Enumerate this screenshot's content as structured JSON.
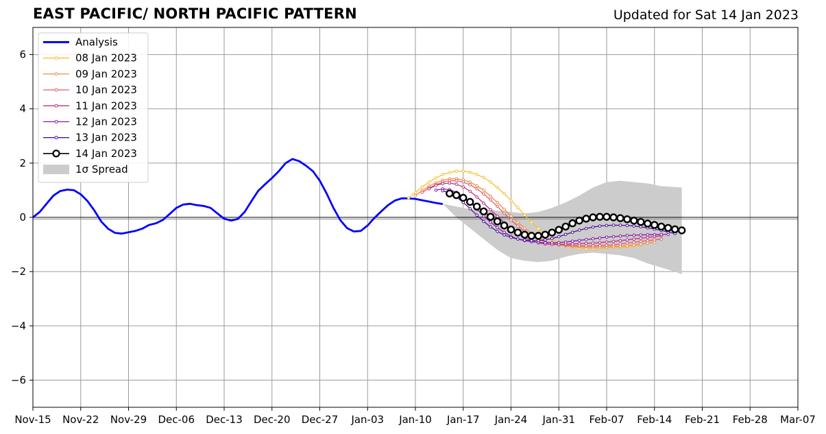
{
  "header": {
    "title": "EAST PACIFIC/ NORTH PACIFIC PATTERN",
    "subtitle": "Updated for Sat 14 Jan 2023"
  },
  "chart_data": {
    "type": "line",
    "title": "EAST PACIFIC/ NORTH PACIFIC PATTERN",
    "subtitle": "Updated for Sat 14 Jan 2023",
    "xlabel": "",
    "ylabel": "",
    "x_units": "days since 2022-11-15",
    "xlim": [
      0,
      112
    ],
    "ylim": [
      -7,
      7
    ],
    "grid": true,
    "legend_placement": "top-left",
    "x_ticks": [
      {
        "x": 0,
        "label": "Nov-15"
      },
      {
        "x": 7,
        "label": "Nov-22"
      },
      {
        "x": 14,
        "label": "Nov-29"
      },
      {
        "x": 21,
        "label": "Dec-06"
      },
      {
        "x": 28,
        "label": "Dec-13"
      },
      {
        "x": 35,
        "label": "Dec-20"
      },
      {
        "x": 42,
        "label": "Dec-27"
      },
      {
        "x": 49,
        "label": "Jan-03"
      },
      {
        "x": 56,
        "label": "Jan-10"
      },
      {
        "x": 63,
        "label": "Jan-17"
      },
      {
        "x": 70,
        "label": "Jan-24"
      },
      {
        "x": 77,
        "label": "Jan-31"
      },
      {
        "x": 84,
        "label": "Feb-07"
      },
      {
        "x": 91,
        "label": "Feb-14"
      },
      {
        "x": 98,
        "label": "Feb-21"
      },
      {
        "x": 105,
        "label": "Feb-28"
      },
      {
        "x": 112,
        "label": "Mar-07"
      }
    ],
    "y_ticks": [
      {
        "y": 6,
        "label": "6"
      },
      {
        "y": 4,
        "label": "4"
      },
      {
        "y": 2,
        "label": "2"
      },
      {
        "y": 0,
        "label": "0"
      },
      {
        "y": -2,
        "label": "−2"
      },
      {
        "y": -4,
        "label": "−4"
      },
      {
        "y": -6,
        "label": "−6"
      }
    ],
    "legend": [
      {
        "label": "Analysis",
        "color": "#0000ff",
        "kind": "line"
      },
      {
        "label": "08 Jan 2023",
        "color": "#fbbf2d",
        "kind": "dots"
      },
      {
        "label": "09 Jan 2023",
        "color": "#f08a48",
        "kind": "dots"
      },
      {
        "label": "10 Jan 2023",
        "color": "#dc5e6a",
        "kind": "dots"
      },
      {
        "label": "11 Jan 2023",
        "color": "#b7317f",
        "kind": "dots"
      },
      {
        "label": "12 Jan 2023",
        "color": "#8a16a6",
        "kind": "dots"
      },
      {
        "label": "13 Jan 2023",
        "color": "#4f0fa0",
        "kind": "dots"
      },
      {
        "label": "14 Jan 2023",
        "color": "#000000",
        "kind": "circles"
      },
      {
        "label": "1σ Spread",
        "color": "#cccccc",
        "kind": "patch"
      }
    ],
    "analysis": {
      "name": "Analysis",
      "color": "#0000ff",
      "x": [
        0,
        1,
        2,
        3,
        4,
        5,
        6,
        7,
        8,
        9,
        10,
        11,
        12,
        13,
        14,
        15,
        16,
        17,
        18,
        19,
        20,
        21,
        22,
        23,
        24,
        25,
        26,
        27,
        28,
        29,
        30,
        31,
        32,
        33,
        34,
        35,
        36,
        37,
        38,
        39,
        40,
        41,
        42,
        43,
        44,
        45,
        46,
        47,
        48,
        49,
        50,
        51,
        52,
        53,
        54,
        55,
        56,
        57,
        58,
        59,
        60
      ],
      "y": [
        0.0,
        0.2,
        0.5,
        0.8,
        0.97,
        1.02,
        1.0,
        0.85,
        0.6,
        0.25,
        -0.15,
        -0.42,
        -0.57,
        -0.6,
        -0.55,
        -0.5,
        -0.42,
        -0.28,
        -0.22,
        -0.1,
        0.12,
        0.35,
        0.47,
        0.5,
        0.45,
        0.42,
        0.35,
        0.15,
        -0.05,
        -0.12,
        -0.06,
        0.2,
        0.6,
        0.98,
        1.22,
        1.45,
        1.7,
        2.0,
        2.15,
        2.07,
        1.9,
        1.7,
        1.35,
        0.88,
        0.35,
        -0.1,
        -0.4,
        -0.52,
        -0.5,
        -0.3,
        -0.02,
        0.22,
        0.45,
        0.62,
        0.7,
        0.7,
        0.68,
        0.63,
        0.58,
        0.53,
        0.49
      ]
    },
    "spread": {
      "name": "1σ Spread",
      "color": "#cccccc",
      "x": [
        60,
        62,
        64,
        66,
        68,
        70,
        72,
        74,
        76,
        78,
        80,
        82,
        84,
        86,
        88,
        90,
        92,
        94,
        95
      ],
      "upper": [
        0.5,
        0.4,
        0.3,
        0.3,
        0.25,
        0.2,
        0.15,
        0.2,
        0.35,
        0.55,
        0.8,
        1.1,
        1.3,
        1.35,
        1.3,
        1.25,
        1.15,
        1.12,
        1.1
      ],
      "lower": [
        0.5,
        0.0,
        -0.4,
        -0.8,
        -1.2,
        -1.5,
        -1.6,
        -1.65,
        -1.6,
        -1.45,
        -1.35,
        -1.3,
        -1.35,
        -1.4,
        -1.5,
        -1.7,
        -1.85,
        -2.0,
        -2.1
      ]
    },
    "series": [
      {
        "name": "08 Jan 2023",
        "color": "#fbbf2d",
        "marker": "dot",
        "x": [
          55,
          56,
          57,
          58,
          59,
          60,
          61,
          62,
          63,
          64,
          65,
          66,
          67,
          68,
          69,
          70,
          71,
          72,
          73,
          74,
          75,
          76,
          77,
          78,
          79,
          80,
          81,
          82,
          83,
          84,
          85,
          86,
          87,
          88,
          89,
          90
        ],
        "y": [
          0.72,
          0.92,
          1.12,
          1.3,
          1.45,
          1.58,
          1.65,
          1.7,
          1.7,
          1.66,
          1.58,
          1.47,
          1.3,
          1.1,
          0.88,
          0.62,
          0.36,
          0.08,
          -0.18,
          -0.42,
          -0.62,
          -0.8,
          -0.95,
          -1.05,
          -1.1,
          -1.13,
          -1.15,
          -1.15,
          -1.14,
          -1.12,
          -1.11,
          -1.1,
          -1.08,
          -1.05,
          -1.0,
          -0.95
        ]
      },
      {
        "name": "09 Jan 2023",
        "color": "#f08a48",
        "marker": "dot",
        "x": [
          56,
          57,
          58,
          59,
          60,
          61,
          62,
          63,
          64,
          65,
          66,
          67,
          68,
          69,
          70,
          71,
          72,
          73,
          74,
          75,
          76,
          77,
          78,
          79,
          80,
          81,
          82,
          83,
          84,
          85,
          86,
          87,
          88,
          89,
          90,
          91
        ],
        "y": [
          0.8,
          0.98,
          1.15,
          1.27,
          1.37,
          1.42,
          1.42,
          1.38,
          1.3,
          1.16,
          1.0,
          0.78,
          0.55,
          0.3,
          0.05,
          -0.18,
          -0.4,
          -0.58,
          -0.75,
          -0.88,
          -0.97,
          -1.02,
          -1.05,
          -1.07,
          -1.08,
          -1.09,
          -1.1,
          -1.1,
          -1.09,
          -1.08,
          -1.07,
          -1.05,
          -1.02,
          -0.99,
          -0.95,
          -0.92
        ]
      },
      {
        "name": "10 Jan 2023",
        "color": "#dc5e6a",
        "marker": "dot",
        "x": [
          57,
          58,
          59,
          60,
          61,
          62,
          63,
          64,
          65,
          66,
          67,
          68,
          69,
          70,
          71,
          72,
          73,
          74,
          75,
          76,
          77,
          78,
          79,
          80,
          81,
          82,
          83,
          84,
          85,
          86,
          87,
          88,
          89,
          90,
          91,
          92
        ],
        "y": [
          0.92,
          1.08,
          1.2,
          1.3,
          1.35,
          1.35,
          1.3,
          1.2,
          1.05,
          0.86,
          0.64,
          0.4,
          0.15,
          -0.1,
          -0.32,
          -0.52,
          -0.68,
          -0.8,
          -0.9,
          -0.96,
          -1.0,
          -1.02,
          -1.04,
          -1.05,
          -1.05,
          -1.05,
          -1.04,
          -1.03,
          -1.01,
          -0.98,
          -0.95,
          -0.92,
          -0.89,
          -0.86,
          -0.83,
          -0.8
        ]
      },
      {
        "name": "11 Jan 2023",
        "color": "#b7317f",
        "marker": "dot",
        "x": [
          58,
          59,
          60,
          61,
          62,
          63,
          64,
          65,
          66,
          67,
          68,
          69,
          70,
          71,
          72,
          73,
          74,
          75,
          76,
          77,
          78,
          79,
          80,
          81,
          82,
          83,
          84,
          85,
          86,
          87,
          88,
          89,
          90,
          91,
          92
        ],
        "y": [
          1.05,
          1.18,
          1.24,
          1.26,
          1.22,
          1.12,
          0.96,
          0.75,
          0.52,
          0.28,
          0.04,
          -0.2,
          -0.42,
          -0.6,
          -0.75,
          -0.86,
          -0.94,
          -0.98,
          -1.0,
          -1.0,
          -0.99,
          -0.98,
          -0.97,
          -0.96,
          -0.95,
          -0.93,
          -0.91,
          -0.89,
          -0.86,
          -0.83,
          -0.8,
          -0.77,
          -0.74,
          -0.71,
          -0.68
        ]
      },
      {
        "name": "12 Jan 2023",
        "color": "#8a16a6",
        "marker": "dot",
        "x": [
          59,
          60,
          61,
          62,
          63,
          64,
          65,
          66,
          67,
          68,
          69,
          70,
          71,
          72,
          73,
          74,
          75,
          76,
          77,
          78,
          79,
          80,
          81,
          82,
          83,
          84,
          85,
          86,
          87,
          88,
          89,
          90,
          91,
          92,
          93
        ],
        "y": [
          1.0,
          1.05,
          1.02,
          0.92,
          0.76,
          0.55,
          0.3,
          0.05,
          -0.18,
          -0.38,
          -0.55,
          -0.7,
          -0.8,
          -0.86,
          -0.9,
          -0.92,
          -0.94,
          -0.94,
          -0.93,
          -0.91,
          -0.88,
          -0.85,
          -0.82,
          -0.79,
          -0.76,
          -0.73,
          -0.71,
          -0.69,
          -0.67,
          -0.66,
          -0.65,
          -0.64,
          -0.64,
          -0.63,
          -0.63
        ]
      },
      {
        "name": "13 Jan 2023",
        "color": "#4f0fa0",
        "marker": "dot",
        "x": [
          60,
          61,
          62,
          63,
          64,
          65,
          66,
          67,
          68,
          69,
          70,
          71,
          72,
          73,
          74,
          75,
          76,
          77,
          78,
          79,
          80,
          81,
          82,
          83,
          84,
          85,
          86,
          87,
          88,
          89,
          90,
          91,
          92,
          93,
          94
        ],
        "y": [
          0.98,
          0.9,
          0.75,
          0.55,
          0.32,
          0.08,
          -0.15,
          -0.35,
          -0.52,
          -0.65,
          -0.74,
          -0.8,
          -0.84,
          -0.86,
          -0.86,
          -0.83,
          -0.78,
          -0.71,
          -0.63,
          -0.55,
          -0.47,
          -0.41,
          -0.36,
          -0.32,
          -0.3,
          -0.29,
          -0.29,
          -0.3,
          -0.32,
          -0.35,
          -0.39,
          -0.43,
          -0.48,
          -0.54,
          -0.6
        ]
      },
      {
        "name": "14 Jan 2023",
        "color": "#000000",
        "marker": "circle",
        "x": [
          61,
          62,
          63,
          64,
          65,
          66,
          67,
          68,
          69,
          70,
          71,
          72,
          73,
          74,
          75,
          76,
          77,
          78,
          79,
          80,
          81,
          82,
          83,
          84,
          85,
          86,
          87,
          88,
          89,
          90,
          91,
          92,
          93,
          94,
          95
        ],
        "y": [
          0.88,
          0.82,
          0.72,
          0.57,
          0.4,
          0.22,
          0.02,
          -0.15,
          -0.3,
          -0.45,
          -0.56,
          -0.64,
          -0.68,
          -0.68,
          -0.64,
          -0.56,
          -0.46,
          -0.34,
          -0.22,
          -0.12,
          -0.05,
          0.0,
          0.02,
          0.02,
          0.0,
          -0.03,
          -0.07,
          -0.12,
          -0.17,
          -0.23,
          -0.28,
          -0.34,
          -0.39,
          -0.44,
          -0.48
        ]
      }
    ]
  }
}
